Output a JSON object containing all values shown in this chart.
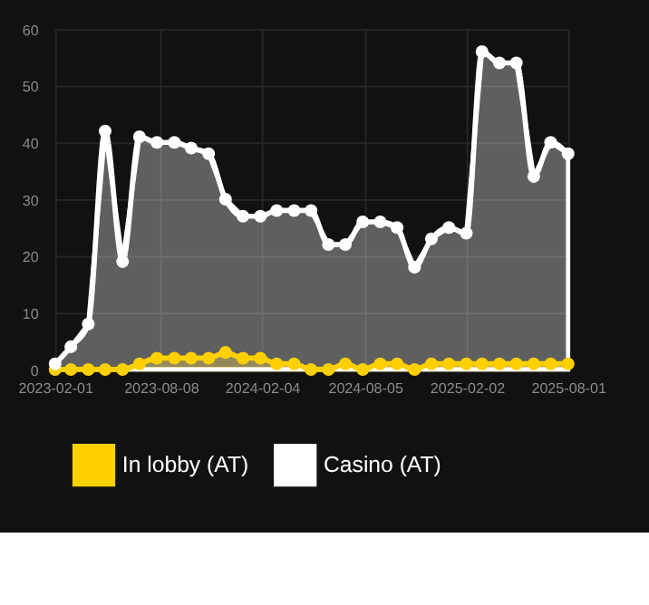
{
  "chart_data": {
    "type": "area",
    "x": [
      "2023-02-01",
      "2023-03-01",
      "2023-04-01",
      "2023-05-01",
      "2023-06-01",
      "2023-07-01",
      "2023-08-01",
      "2023-09-01",
      "2023-10-01",
      "2023-11-01",
      "2023-12-01",
      "2024-01-01",
      "2024-02-01",
      "2024-03-01",
      "2024-04-01",
      "2024-05-01",
      "2024-06-01",
      "2024-07-01",
      "2024-08-01",
      "2024-09-01",
      "2024-10-01",
      "2024-11-01",
      "2024-12-01",
      "2025-01-01",
      "2025-02-01",
      "2025-03-01",
      "2025-04-01",
      "2025-05-01",
      "2025-06-01",
      "2025-07-01",
      "2025-08-01"
    ],
    "series": [
      {
        "name": "In lobby (AT)",
        "color": "#ffd000",
        "values": [
          0,
          0,
          0,
          0,
          0,
          1,
          2,
          2,
          2,
          2,
          3,
          2,
          2,
          1,
          1,
          0,
          0,
          1,
          0,
          1,
          1,
          0,
          1,
          1,
          1,
          1,
          1,
          1,
          1,
          1,
          1
        ]
      },
      {
        "name": "Casino (AT)",
        "color": "#ffffff",
        "values": [
          1,
          4,
          8,
          42,
          19,
          41,
          40,
          40,
          39,
          38,
          30,
          27,
          27,
          28,
          28,
          28,
          22,
          22,
          26,
          26,
          25,
          18,
          23,
          25,
          24,
          56,
          54,
          54,
          34,
          40,
          38
        ]
      }
    ],
    "xlim": [
      "2023-02-01",
      "2025-08-01"
    ],
    "xticks": [
      "2023-02-01",
      "2023-08-08",
      "2024-02-04",
      "2024-08-05",
      "2025-02-02",
      "2025-08-01"
    ],
    "ylim": [
      0,
      60
    ],
    "yticks": [
      0,
      10,
      20,
      30,
      40,
      50,
      60
    ],
    "grid": true,
    "legend": "bottom",
    "marker": "circle",
    "line_style": "solid"
  }
}
